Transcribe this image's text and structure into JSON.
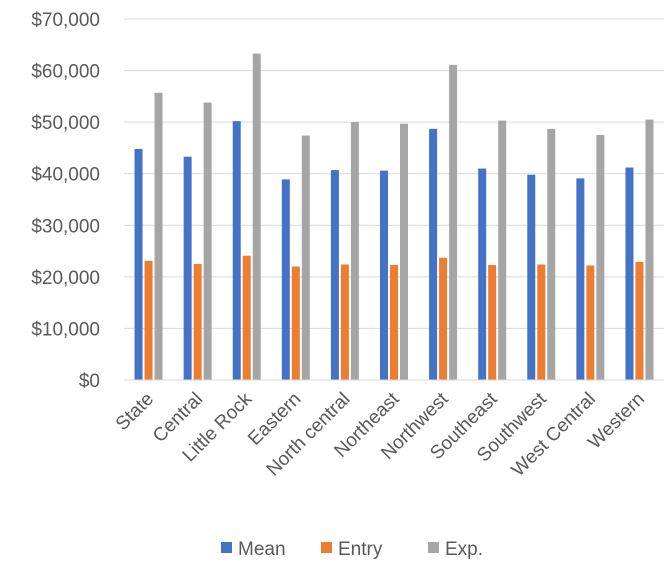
{
  "chart_data": {
    "type": "bar",
    "title": "",
    "xlabel": "",
    "ylabel": "",
    "ylim": [
      0,
      70000
    ],
    "yticks": [
      0,
      10000,
      20000,
      30000,
      40000,
      50000,
      60000,
      70000
    ],
    "ytick_labels": [
      "$0",
      "$10,000",
      "$20,000",
      "$30,000",
      "$40,000",
      "$50,000",
      "$60,000",
      "$70,000"
    ],
    "grid": true,
    "legend_position": "bottom",
    "categories": [
      "State",
      "Central",
      "Little Rock",
      "Eastern",
      "North central",
      "Northeast",
      "Northwest",
      "Southeast",
      "Southwest",
      "West Central",
      "Western"
    ],
    "series": [
      {
        "name": "Mean",
        "color": "#4472C4",
        "values": [
          44800,
          43300,
          50200,
          38900,
          40700,
          40600,
          48700,
          41000,
          39800,
          39100,
          41200
        ]
      },
      {
        "name": "Entry",
        "color": "#ED7D31",
        "values": [
          23100,
          22500,
          24100,
          22000,
          22400,
          22300,
          23700,
          22300,
          22400,
          22200,
          22900
        ]
      },
      {
        "name": "Exp.",
        "color": "#A5A5A5",
        "values": [
          55700,
          53800,
          63300,
          47400,
          50000,
          49700,
          61100,
          50300,
          48700,
          47500,
          50500
        ]
      }
    ]
  }
}
